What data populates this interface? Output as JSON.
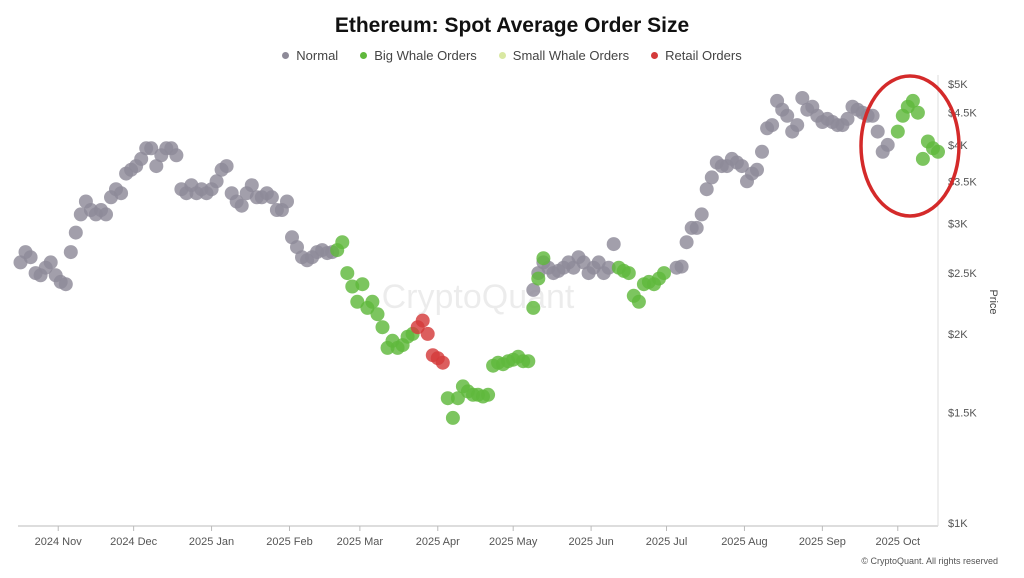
{
  "chart_title": "Ethereum: Spot Average Order Size",
  "legend": [
    {
      "label": "Normal",
      "color": "#8d8a98"
    },
    {
      "label": "Big Whale Orders",
      "color": "#5fb83c"
    },
    {
      "label": "Small Whale Orders",
      "color": "#d9e8a2"
    },
    {
      "label": "Retail Orders",
      "color": "#d43a3a"
    }
  ],
  "watermark": "CryptoQuant",
  "credit": "© CryptoQuant. All rights reserved",
  "annotation": {
    "shape": "ellipse",
    "color": "#d42a2a"
  },
  "chart_data": {
    "type": "scatter",
    "title": "Ethereum: Spot Average Order Size",
    "xlabel": "",
    "ylabel": "Price",
    "y_scale": "log",
    "ylim": [
      1000,
      5000
    ],
    "y_ticks": [
      {
        "value": 1000,
        "label": "$1K"
      },
      {
        "value": 1500,
        "label": "$1.5K"
      },
      {
        "value": 2000,
        "label": "$2K"
      },
      {
        "value": 2500,
        "label": "$2.5K"
      },
      {
        "value": 3000,
        "label": "$3K"
      },
      {
        "value": 3500,
        "label": "$3.5K"
      },
      {
        "value": 4000,
        "label": "$4K"
      },
      {
        "value": 4500,
        "label": "$4.5K"
      },
      {
        "value": 5000,
        "label": "$5K"
      }
    ],
    "x_range": [
      "2024-10-16",
      "2025-10-17"
    ],
    "x_ticks": [
      {
        "value": "2024-11-01",
        "label": "2024 Nov"
      },
      {
        "value": "2024-12-01",
        "label": "2024 Dec"
      },
      {
        "value": "2025-01-01",
        "label": "2025 Jan"
      },
      {
        "value": "2025-02-01",
        "label": "2025 Feb"
      },
      {
        "value": "2025-03-01",
        "label": "2025 Mar"
      },
      {
        "value": "2025-04-01",
        "label": "2025 Apr"
      },
      {
        "value": "2025-05-01",
        "label": "2025 May"
      },
      {
        "value": "2025-06-01",
        "label": "2025 Jun"
      },
      {
        "value": "2025-07-01",
        "label": "2025 Jul"
      },
      {
        "value": "2025-08-01",
        "label": "2025 Aug"
      },
      {
        "value": "2025-09-01",
        "label": "2025 Sep"
      },
      {
        "value": "2025-10-01",
        "label": "2025 Oct"
      }
    ],
    "grid": false,
    "legend_position": "top",
    "series": [
      {
        "name": "Normal",
        "color": "#8d8a98",
        "points": [
          [
            "2024-10-17",
            2600
          ],
          [
            "2024-10-19",
            2700
          ],
          [
            "2024-10-21",
            2650
          ],
          [
            "2024-10-23",
            2500
          ],
          [
            "2024-10-25",
            2480
          ],
          [
            "2024-10-27",
            2550
          ],
          [
            "2024-10-29",
            2600
          ],
          [
            "2024-10-31",
            2480
          ],
          [
            "2024-11-02",
            2420
          ],
          [
            "2024-11-04",
            2400
          ],
          [
            "2024-11-06",
            2700
          ],
          [
            "2024-11-08",
            2900
          ],
          [
            "2024-11-10",
            3100
          ],
          [
            "2024-11-12",
            3250
          ],
          [
            "2024-11-14",
            3150
          ],
          [
            "2024-11-16",
            3100
          ],
          [
            "2024-11-18",
            3150
          ],
          [
            "2024-11-20",
            3100
          ],
          [
            "2024-11-22",
            3300
          ],
          [
            "2024-11-24",
            3400
          ],
          [
            "2024-11-26",
            3350
          ],
          [
            "2024-11-28",
            3600
          ],
          [
            "2024-11-30",
            3650
          ],
          [
            "2024-12-02",
            3700
          ],
          [
            "2024-12-04",
            3800
          ],
          [
            "2024-12-06",
            3950
          ],
          [
            "2024-12-08",
            3950
          ],
          [
            "2024-12-10",
            3700
          ],
          [
            "2024-12-12",
            3850
          ],
          [
            "2024-12-14",
            3950
          ],
          [
            "2024-12-16",
            3950
          ],
          [
            "2024-12-18",
            3850
          ],
          [
            "2024-12-20",
            3400
          ],
          [
            "2024-12-22",
            3350
          ],
          [
            "2024-12-24",
            3450
          ],
          [
            "2024-12-26",
            3350
          ],
          [
            "2024-12-28",
            3400
          ],
          [
            "2024-12-30",
            3350
          ],
          [
            "2025-01-01",
            3400
          ],
          [
            "2025-01-03",
            3500
          ],
          [
            "2025-01-05",
            3650
          ],
          [
            "2025-01-07",
            3700
          ],
          [
            "2025-01-09",
            3350
          ],
          [
            "2025-01-11",
            3250
          ],
          [
            "2025-01-13",
            3200
          ],
          [
            "2025-01-15",
            3350
          ],
          [
            "2025-01-17",
            3450
          ],
          [
            "2025-01-19",
            3300
          ],
          [
            "2025-01-21",
            3300
          ],
          [
            "2025-01-23",
            3350
          ],
          [
            "2025-01-25",
            3300
          ],
          [
            "2025-01-27",
            3150
          ],
          [
            "2025-01-29",
            3150
          ],
          [
            "2025-01-31",
            3250
          ],
          [
            "2025-02-02",
            2850
          ],
          [
            "2025-02-04",
            2750
          ],
          [
            "2025-02-06",
            2650
          ],
          [
            "2025-02-08",
            2620
          ],
          [
            "2025-02-10",
            2650
          ],
          [
            "2025-02-12",
            2700
          ],
          [
            "2025-02-14",
            2720
          ],
          [
            "2025-02-16",
            2690
          ],
          [
            "2025-02-18",
            2700
          ],
          [
            "2025-05-09",
            2350
          ],
          [
            "2025-05-11",
            2500
          ],
          [
            "2025-05-13",
            2600
          ],
          [
            "2025-05-15",
            2550
          ],
          [
            "2025-05-17",
            2500
          ],
          [
            "2025-05-19",
            2520
          ],
          [
            "2025-05-21",
            2550
          ],
          [
            "2025-05-23",
            2600
          ],
          [
            "2025-05-25",
            2550
          ],
          [
            "2025-05-27",
            2650
          ],
          [
            "2025-05-29",
            2600
          ],
          [
            "2025-05-31",
            2500
          ],
          [
            "2025-06-02",
            2550
          ],
          [
            "2025-06-04",
            2600
          ],
          [
            "2025-06-06",
            2500
          ],
          [
            "2025-06-08",
            2550
          ],
          [
            "2025-06-10",
            2780
          ],
          [
            "2025-07-05",
            2550
          ],
          [
            "2025-07-07",
            2560
          ],
          [
            "2025-07-09",
            2800
          ],
          [
            "2025-07-11",
            2950
          ],
          [
            "2025-07-13",
            2950
          ],
          [
            "2025-07-15",
            3100
          ],
          [
            "2025-07-17",
            3400
          ],
          [
            "2025-07-19",
            3550
          ],
          [
            "2025-07-21",
            3750
          ],
          [
            "2025-07-23",
            3700
          ],
          [
            "2025-07-25",
            3700
          ],
          [
            "2025-07-27",
            3800
          ],
          [
            "2025-07-29",
            3750
          ],
          [
            "2025-07-31",
            3700
          ],
          [
            "2025-08-02",
            3500
          ],
          [
            "2025-08-04",
            3600
          ],
          [
            "2025-08-06",
            3650
          ],
          [
            "2025-08-08",
            3900
          ],
          [
            "2025-08-10",
            4250
          ],
          [
            "2025-08-12",
            4300
          ],
          [
            "2025-08-14",
            4700
          ],
          [
            "2025-08-16",
            4550
          ],
          [
            "2025-08-18",
            4450
          ],
          [
            "2025-08-20",
            4200
          ],
          [
            "2025-08-22",
            4300
          ],
          [
            "2025-08-24",
            4750
          ],
          [
            "2025-08-26",
            4550
          ],
          [
            "2025-08-28",
            4600
          ],
          [
            "2025-08-30",
            4450
          ],
          [
            "2025-09-01",
            4350
          ],
          [
            "2025-09-03",
            4400
          ],
          [
            "2025-09-05",
            4350
          ],
          [
            "2025-09-07",
            4300
          ],
          [
            "2025-09-09",
            4300
          ],
          [
            "2025-09-11",
            4400
          ],
          [
            "2025-09-13",
            4600
          ],
          [
            "2025-09-15",
            4550
          ],
          [
            "2025-09-17",
            4500
          ],
          [
            "2025-09-19",
            4450
          ],
          [
            "2025-09-21",
            4450
          ],
          [
            "2025-09-23",
            4200
          ],
          [
            "2025-09-25",
            3900
          ],
          [
            "2025-09-27",
            4000
          ]
        ]
      },
      {
        "name": "Big Whale Orders",
        "color": "#5fb83c",
        "points": [
          [
            "2025-02-20",
            2720
          ],
          [
            "2025-02-22",
            2800
          ],
          [
            "2025-02-24",
            2500
          ],
          [
            "2025-02-26",
            2380
          ],
          [
            "2025-02-28",
            2250
          ],
          [
            "2025-03-02",
            2400
          ],
          [
            "2025-03-04",
            2200
          ],
          [
            "2025-03-06",
            2250
          ],
          [
            "2025-03-08",
            2150
          ],
          [
            "2025-03-10",
            2050
          ],
          [
            "2025-03-12",
            1900
          ],
          [
            "2025-03-14",
            1950
          ],
          [
            "2025-03-16",
            1900
          ],
          [
            "2025-03-18",
            1920
          ],
          [
            "2025-03-20",
            1980
          ],
          [
            "2025-03-22",
            2000
          ],
          [
            "2025-04-05",
            1580
          ],
          [
            "2025-04-07",
            1470
          ],
          [
            "2025-04-09",
            1580
          ],
          [
            "2025-04-11",
            1650
          ],
          [
            "2025-04-13",
            1620
          ],
          [
            "2025-04-15",
            1600
          ],
          [
            "2025-04-17",
            1600
          ],
          [
            "2025-04-19",
            1590
          ],
          [
            "2025-04-21",
            1600
          ],
          [
            "2025-04-23",
            1780
          ],
          [
            "2025-04-25",
            1800
          ],
          [
            "2025-04-27",
            1790
          ],
          [
            "2025-04-29",
            1810
          ],
          [
            "2025-05-01",
            1820
          ],
          [
            "2025-05-03",
            1840
          ],
          [
            "2025-05-05",
            1810
          ],
          [
            "2025-05-07",
            1810
          ],
          [
            "2025-05-09",
            2200
          ],
          [
            "2025-05-11",
            2450
          ],
          [
            "2025-05-13",
            2640
          ],
          [
            "2025-06-12",
            2550
          ],
          [
            "2025-06-14",
            2520
          ],
          [
            "2025-06-16",
            2500
          ],
          [
            "2025-06-18",
            2300
          ],
          [
            "2025-06-20",
            2250
          ],
          [
            "2025-06-22",
            2400
          ],
          [
            "2025-06-24",
            2420
          ],
          [
            "2025-06-26",
            2400
          ],
          [
            "2025-06-28",
            2450
          ],
          [
            "2025-06-30",
            2500
          ],
          [
            "2025-10-01",
            4200
          ],
          [
            "2025-10-03",
            4450
          ],
          [
            "2025-10-05",
            4600
          ],
          [
            "2025-10-07",
            4700
          ],
          [
            "2025-10-09",
            4500
          ],
          [
            "2025-10-11",
            3800
          ],
          [
            "2025-10-13",
            4050
          ],
          [
            "2025-10-15",
            3950
          ],
          [
            "2025-10-17",
            3900
          ]
        ]
      },
      {
        "name": "Retail Orders",
        "color": "#d43a3a",
        "points": [
          [
            "2025-03-24",
            2050
          ],
          [
            "2025-03-26",
            2100
          ],
          [
            "2025-03-28",
            2000
          ],
          [
            "2025-03-30",
            1850
          ],
          [
            "2025-04-01",
            1830
          ],
          [
            "2025-04-03",
            1800
          ]
        ]
      }
    ]
  }
}
